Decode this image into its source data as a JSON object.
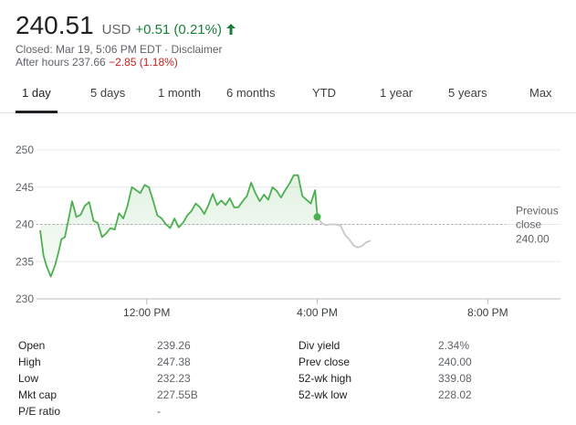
{
  "header": {
    "price": "240.51",
    "currency": "USD",
    "change": "+0.51 (0.21%)",
    "change_direction": "up",
    "closed_text": "Closed: Mar 19, 5:06 PM EDT · Disclaimer",
    "after_hours_label": "After hours 237.66",
    "after_hours_change": "−2.85 (1.18%)"
  },
  "tabs": [
    {
      "label": "1 day",
      "active": true
    },
    {
      "label": "5 days",
      "active": false
    },
    {
      "label": "1 month",
      "active": false
    },
    {
      "label": "6 months",
      "active": false
    },
    {
      "label": "YTD",
      "active": false
    },
    {
      "label": "1 year",
      "active": false
    },
    {
      "label": "5 years",
      "active": false
    },
    {
      "label": "Max",
      "active": false
    }
  ],
  "colors": {
    "up": "#188038",
    "down": "#c5221f",
    "line": "#4caf50",
    "after_hours_line": "#c8c8c8"
  },
  "chart_data": {
    "type": "line",
    "y_ticks": [
      "250",
      "245",
      "240",
      "235",
      "230"
    ],
    "ylim": [
      230,
      250
    ],
    "x_ticks": [
      {
        "label": "12:00 PM",
        "t": 12.0
      },
      {
        "label": "4:00 PM",
        "t": 16.0
      },
      {
        "label": "8:00 PM",
        "t": 20.0
      }
    ],
    "xlim": [
      9.5,
      21.0
    ],
    "grid": "horizontal",
    "previous_close": {
      "label_line1": "Previous",
      "label_line2": "close",
      "value_text": "240.00",
      "value": 240.0
    },
    "series": [
      {
        "session": "regular",
        "x": [
          9.5,
          9.58,
          9.65,
          9.75,
          9.85,
          9.92,
          10.0,
          10.08,
          10.17,
          10.25,
          10.35,
          10.45,
          10.55,
          10.65,
          10.75,
          10.85,
          10.95,
          11.05,
          11.15,
          11.25,
          11.35,
          11.45,
          11.55,
          11.65,
          11.75,
          11.85,
          11.95,
          12.05,
          12.15,
          12.25,
          12.35,
          12.45,
          12.55,
          12.65,
          12.75,
          12.85,
          12.95,
          13.05,
          13.15,
          13.25,
          13.35,
          13.45,
          13.55,
          13.65,
          13.75,
          13.85,
          13.95,
          14.05,
          14.15,
          14.25,
          14.35,
          14.45,
          14.55,
          14.65,
          14.75,
          14.85,
          14.95,
          15.05,
          15.15,
          15.25,
          15.35,
          15.45,
          15.55,
          15.65,
          15.75,
          15.85,
          15.95,
          16.0
        ],
        "y": [
          239.2,
          235.8,
          234.4,
          233.0,
          234.5,
          236.0,
          238.0,
          238.3,
          240.8,
          243.1,
          241.0,
          241.3,
          242.5,
          243.0,
          240.5,
          240.2,
          238.3,
          238.8,
          239.5,
          239.3,
          241.5,
          240.8,
          242.5,
          245.0,
          244.6,
          244.2,
          245.3,
          245.0,
          243.2,
          241.2,
          240.8,
          240.0,
          239.5,
          240.8,
          239.6,
          240.2,
          241.2,
          241.8,
          242.8,
          242.3,
          241.4,
          242.6,
          244.1,
          242.6,
          243.2,
          242.6,
          243.5,
          242.3,
          242.3,
          243.1,
          243.8,
          245.6,
          244.2,
          243.1,
          244.0,
          243.3,
          245.0,
          244.5,
          243.6,
          244.6,
          245.5,
          246.6,
          246.6,
          243.8,
          243.3,
          242.8,
          244.6,
          241.4
        ],
        "color": "#4caf50"
      },
      {
        "session": "after-hours",
        "x": [
          16.0,
          16.1,
          16.2,
          16.3,
          16.45,
          16.55,
          16.65,
          16.75,
          16.85,
          16.95,
          17.05,
          17.15,
          17.25
        ],
        "y": [
          241.0,
          240.2,
          239.9,
          240.0,
          240.0,
          239.8,
          238.6,
          238.0,
          237.2,
          236.9,
          237.1,
          237.6,
          237.8
        ],
        "color": "#c8c8c8"
      }
    ],
    "last_point": {
      "x": 16.0,
      "y": 241.0
    }
  },
  "stats": [
    {
      "label": "Open",
      "value": "239.26",
      "label2": "Div yield",
      "value2": "2.34%"
    },
    {
      "label": "High",
      "value": "247.38",
      "label2": "Prev close",
      "value2": "240.00"
    },
    {
      "label": "Low",
      "value": "232.23",
      "label2": "52-wk high",
      "value2": "339.08"
    },
    {
      "label": "Mkt cap",
      "value": "227.55B",
      "label2": "52-wk low",
      "value2": "228.02"
    },
    {
      "label": "P/E ratio",
      "value": "-",
      "label2": "",
      "value2": ""
    }
  ]
}
